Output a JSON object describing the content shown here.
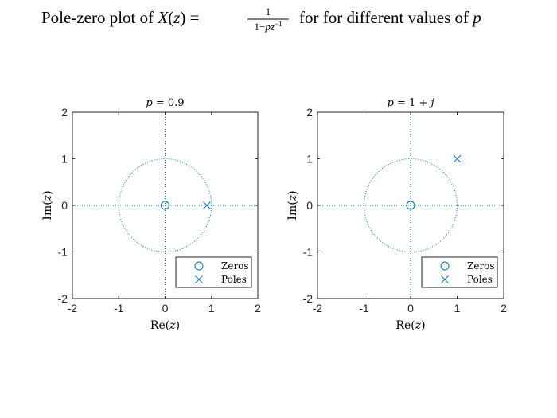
{
  "figure": {
    "title_prefix": "Pole-zero plot of ",
    "title_X": "X",
    "title_paren_open": "(",
    "title_z": "z",
    "title_paren_close": ")",
    "title_equals": " = ",
    "frac_num": "1",
    "frac_den_1": "1−",
    "frac_den_p": "pz",
    "frac_den_exp": "−1",
    "title_suffix": " for for different values of ",
    "title_p": "p"
  },
  "colors": {
    "accent": "#0072BD",
    "axis": "#262626"
  },
  "chart_data": [
    {
      "type": "scatter",
      "title": "p = 0.9",
      "xlabel": "Re(z)",
      "ylabel": "Im(z)",
      "xlim": [
        -2,
        2
      ],
      "ylim": [
        -2,
        2
      ],
      "xticks": [
        "-2",
        "-1",
        "0",
        "1",
        "2"
      ],
      "yticks": [
        "-2",
        "-1",
        "0",
        "1",
        "2"
      ],
      "unit_circle": true,
      "axis_lines": true,
      "legend_position": "bottom-right",
      "legend": [
        "Zeros",
        "Poles"
      ],
      "series": [
        {
          "name": "Zeros",
          "marker": "circle",
          "points": [
            [
              0,
              0
            ]
          ]
        },
        {
          "name": "Poles",
          "marker": "x",
          "points": [
            [
              0.9,
              0
            ]
          ]
        }
      ]
    },
    {
      "type": "scatter",
      "title": "p = 1 + j",
      "xlabel": "Re(z)",
      "ylabel": "Im(z)",
      "xlim": [
        -2,
        2
      ],
      "ylim": [
        -2,
        2
      ],
      "xticks": [
        "-2",
        "-1",
        "0",
        "1",
        "2"
      ],
      "yticks": [
        "-2",
        "-1",
        "0",
        "1",
        "2"
      ],
      "unit_circle": true,
      "axis_lines": true,
      "legend_position": "bottom-right",
      "legend": [
        "Zeros",
        "Poles"
      ],
      "series": [
        {
          "name": "Zeros",
          "marker": "circle",
          "points": [
            [
              0,
              0
            ]
          ]
        },
        {
          "name": "Poles",
          "marker": "x",
          "points": [
            [
              1,
              1
            ]
          ]
        }
      ]
    }
  ]
}
